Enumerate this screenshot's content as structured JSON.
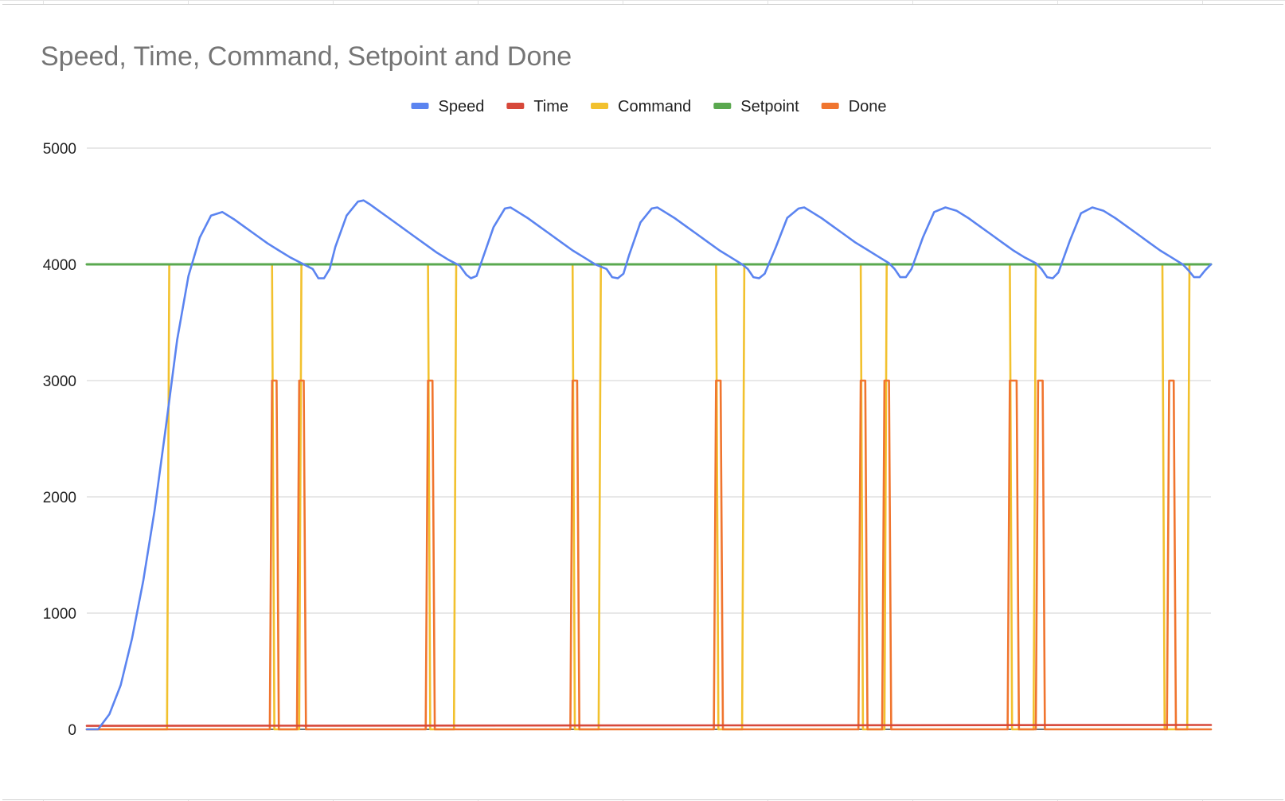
{
  "chart_data": {
    "type": "line",
    "title": "Speed, Time, Command, Setpoint and Done",
    "xlabel": "",
    "ylabel": "",
    "ylim": [
      0,
      5000
    ],
    "yticks": [
      0,
      1000,
      2000,
      3000,
      4000,
      5000
    ],
    "grid": true,
    "legend_position": "top",
    "series": [
      {
        "name": "Speed",
        "color": "#5b84f0",
        "points": [
          [
            0,
            0
          ],
          [
            1,
            0
          ],
          [
            2,
            130
          ],
          [
            3,
            380
          ],
          [
            4,
            780
          ],
          [
            5,
            1280
          ],
          [
            6,
            1880
          ],
          [
            7,
            2600
          ],
          [
            8,
            3350
          ],
          [
            9,
            3900
          ],
          [
            10,
            4230
          ],
          [
            11,
            4420
          ],
          [
            12,
            4450
          ],
          [
            13,
            4390
          ],
          [
            14,
            4320
          ],
          [
            15,
            4250
          ],
          [
            16,
            4180
          ],
          [
            17,
            4120
          ],
          [
            18,
            4060
          ],
          [
            19,
            4010
          ],
          [
            20,
            3960
          ],
          [
            20.5,
            3880
          ],
          [
            21,
            3880
          ],
          [
            21.5,
            3960
          ],
          [
            22,
            4150
          ],
          [
            23,
            4420
          ],
          [
            24,
            4540
          ],
          [
            24.5,
            4550
          ],
          [
            25,
            4520
          ],
          [
            26,
            4450
          ],
          [
            27,
            4380
          ],
          [
            28,
            4310
          ],
          [
            29,
            4240
          ],
          [
            30,
            4170
          ],
          [
            31,
            4100
          ],
          [
            32,
            4040
          ],
          [
            33,
            3990
          ],
          [
            33.6,
            3910
          ],
          [
            34,
            3880
          ],
          [
            34.5,
            3900
          ],
          [
            35,
            4040
          ],
          [
            36,
            4320
          ],
          [
            37,
            4480
          ],
          [
            37.5,
            4490
          ],
          [
            38,
            4460
          ],
          [
            39,
            4400
          ],
          [
            40,
            4330
          ],
          [
            41,
            4260
          ],
          [
            42,
            4190
          ],
          [
            43,
            4120
          ],
          [
            44,
            4060
          ],
          [
            45,
            4000
          ],
          [
            46,
            3960
          ],
          [
            46.5,
            3890
          ],
          [
            47,
            3880
          ],
          [
            47.5,
            3920
          ],
          [
            48,
            4080
          ],
          [
            49,
            4360
          ],
          [
            50,
            4480
          ],
          [
            50.5,
            4490
          ],
          [
            51,
            4460
          ],
          [
            52,
            4400
          ],
          [
            53,
            4330
          ],
          [
            54,
            4260
          ],
          [
            55,
            4190
          ],
          [
            56,
            4120
          ],
          [
            57,
            4060
          ],
          [
            58,
            4000
          ],
          [
            58.5,
            3960
          ],
          [
            59,
            3890
          ],
          [
            59.5,
            3880
          ],
          [
            60,
            3920
          ],
          [
            61,
            4150
          ],
          [
            62,
            4400
          ],
          [
            63,
            4480
          ],
          [
            63.5,
            4490
          ],
          [
            64,
            4460
          ],
          [
            65,
            4400
          ],
          [
            66,
            4330
          ],
          [
            67,
            4260
          ],
          [
            68,
            4190
          ],
          [
            69,
            4130
          ],
          [
            70,
            4070
          ],
          [
            71,
            4010
          ],
          [
            71.5,
            3960
          ],
          [
            72,
            3890
          ],
          [
            72.5,
            3890
          ],
          [
            73,
            3960
          ],
          [
            74,
            4230
          ],
          [
            75,
            4450
          ],
          [
            76,
            4490
          ],
          [
            77,
            4460
          ],
          [
            78,
            4400
          ],
          [
            79,
            4330
          ],
          [
            80,
            4260
          ],
          [
            81,
            4190
          ],
          [
            82,
            4120
          ],
          [
            83,
            4060
          ],
          [
            84,
            4010
          ],
          [
            84.5,
            3960
          ],
          [
            85,
            3890
          ],
          [
            85.5,
            3880
          ],
          [
            86,
            3930
          ],
          [
            87,
            4200
          ],
          [
            88,
            4440
          ],
          [
            89,
            4490
          ],
          [
            90,
            4460
          ],
          [
            91,
            4400
          ],
          [
            92,
            4330
          ],
          [
            93,
            4260
          ],
          [
            94,
            4190
          ],
          [
            95,
            4120
          ],
          [
            96,
            4060
          ],
          [
            97,
            4000
          ],
          [
            97.5,
            3950
          ],
          [
            98,
            3890
          ],
          [
            98.5,
            3890
          ],
          [
            99,
            3950
          ],
          [
            99.5,
            4000
          ]
        ]
      },
      {
        "name": "Time",
        "color": "#d7483a",
        "points": [
          [
            0,
            30
          ],
          [
            99.5,
            38
          ]
        ]
      },
      {
        "name": "Command",
        "color": "#f2c12e",
        "points": [
          [
            0,
            0
          ],
          [
            7.1,
            0
          ],
          [
            7.3,
            4000
          ],
          [
            16.4,
            4000
          ],
          [
            16.6,
            0
          ],
          [
            18.8,
            0
          ],
          [
            19.0,
            4000
          ],
          [
            30.2,
            4000
          ],
          [
            30.4,
            0
          ],
          [
            32.5,
            0
          ],
          [
            32.7,
            4000
          ],
          [
            43.0,
            4000
          ],
          [
            43.2,
            0
          ],
          [
            45.3,
            0
          ],
          [
            45.5,
            4000
          ],
          [
            55.7,
            4000
          ],
          [
            55.9,
            0
          ],
          [
            58.0,
            0
          ],
          [
            58.2,
            4000
          ],
          [
            68.5,
            4000
          ],
          [
            68.7,
            0
          ],
          [
            70.6,
            0
          ],
          [
            70.8,
            4000
          ],
          [
            81.7,
            4000
          ],
          [
            81.9,
            0
          ],
          [
            83.8,
            0
          ],
          [
            84.0,
            4000
          ],
          [
            95.2,
            4000
          ],
          [
            95.4,
            0
          ],
          [
            97.4,
            0
          ],
          [
            97.6,
            4000
          ],
          [
            99.5,
            4000
          ]
        ]
      },
      {
        "name": "Setpoint",
        "color": "#5aa84f",
        "points": [
          [
            0,
            4000
          ],
          [
            99.5,
            4000
          ]
        ]
      },
      {
        "name": "Done",
        "color": "#f0752f",
        "points": [
          [
            0,
            0
          ],
          [
            16.2,
            0
          ],
          [
            16.4,
            3000
          ],
          [
            16.8,
            3000
          ],
          [
            17.0,
            0
          ],
          [
            18.6,
            0
          ],
          [
            18.8,
            3000
          ],
          [
            19.2,
            3000
          ],
          [
            19.4,
            0
          ],
          [
            30.0,
            0
          ],
          [
            30.2,
            3000
          ],
          [
            30.6,
            3000
          ],
          [
            30.8,
            0
          ],
          [
            42.8,
            0
          ],
          [
            43.0,
            3000
          ],
          [
            43.4,
            3000
          ],
          [
            43.6,
            0
          ],
          [
            55.5,
            0
          ],
          [
            55.7,
            3000
          ],
          [
            56.1,
            3000
          ],
          [
            56.3,
            0
          ],
          [
            68.3,
            0
          ],
          [
            68.5,
            3000
          ],
          [
            68.9,
            3000
          ],
          [
            69.1,
            0
          ],
          [
            70.4,
            0
          ],
          [
            70.6,
            3000
          ],
          [
            71.0,
            3000
          ],
          [
            71.2,
            0
          ],
          [
            81.5,
            0
          ],
          [
            81.7,
            3000
          ],
          [
            82.3,
            3000
          ],
          [
            82.5,
            0
          ],
          [
            84.0,
            0
          ],
          [
            84.2,
            3000
          ],
          [
            84.6,
            3000
          ],
          [
            84.8,
            0
          ],
          [
            95.6,
            0
          ],
          [
            95.8,
            3000
          ],
          [
            96.2,
            3000
          ],
          [
            96.4,
            0
          ],
          [
            99.5,
            0
          ]
        ]
      }
    ]
  }
}
